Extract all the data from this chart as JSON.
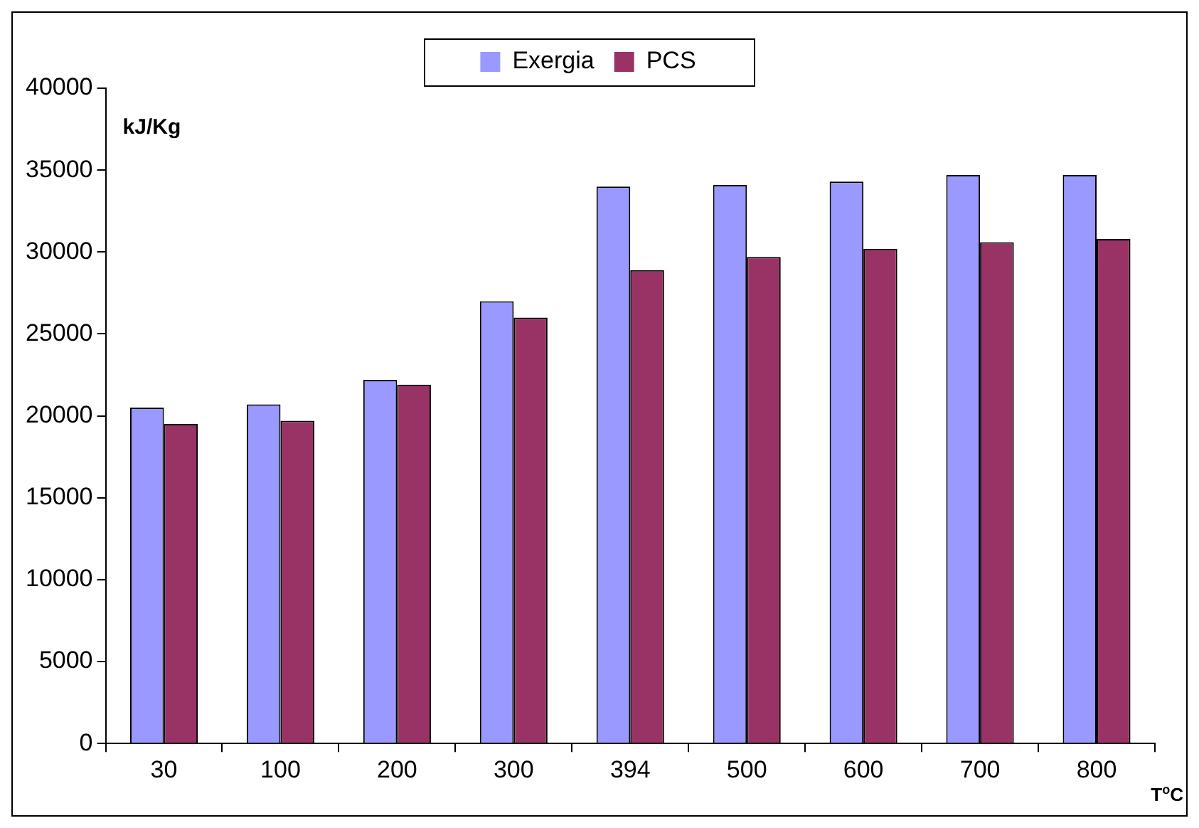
{
  "chart_data": {
    "type": "bar",
    "ylabel": "kJ/Kg",
    "xlabel": "T$^{o}$C",
    "categories": [
      "30",
      "100",
      "200",
      "300",
      "394",
      "500",
      "600",
      "700",
      "800"
    ],
    "series": [
      {
        "name": "Exergia",
        "color": "#9999ff",
        "values": [
          20500,
          20700,
          22200,
          27000,
          34000,
          34100,
          34300,
          34700,
          34700
        ]
      },
      {
        "name": "PCS",
        "color": "#993366",
        "values": [
          19500,
          19700,
          21900,
          26000,
          28900,
          29700,
          30200,
          30600,
          30800
        ]
      }
    ],
    "ylim": [
      0,
      40000
    ],
    "yticks": [
      0,
      5000,
      10000,
      15000,
      20000,
      25000,
      30000,
      35000,
      40000
    ],
    "legend": "top",
    "grid": false
  }
}
